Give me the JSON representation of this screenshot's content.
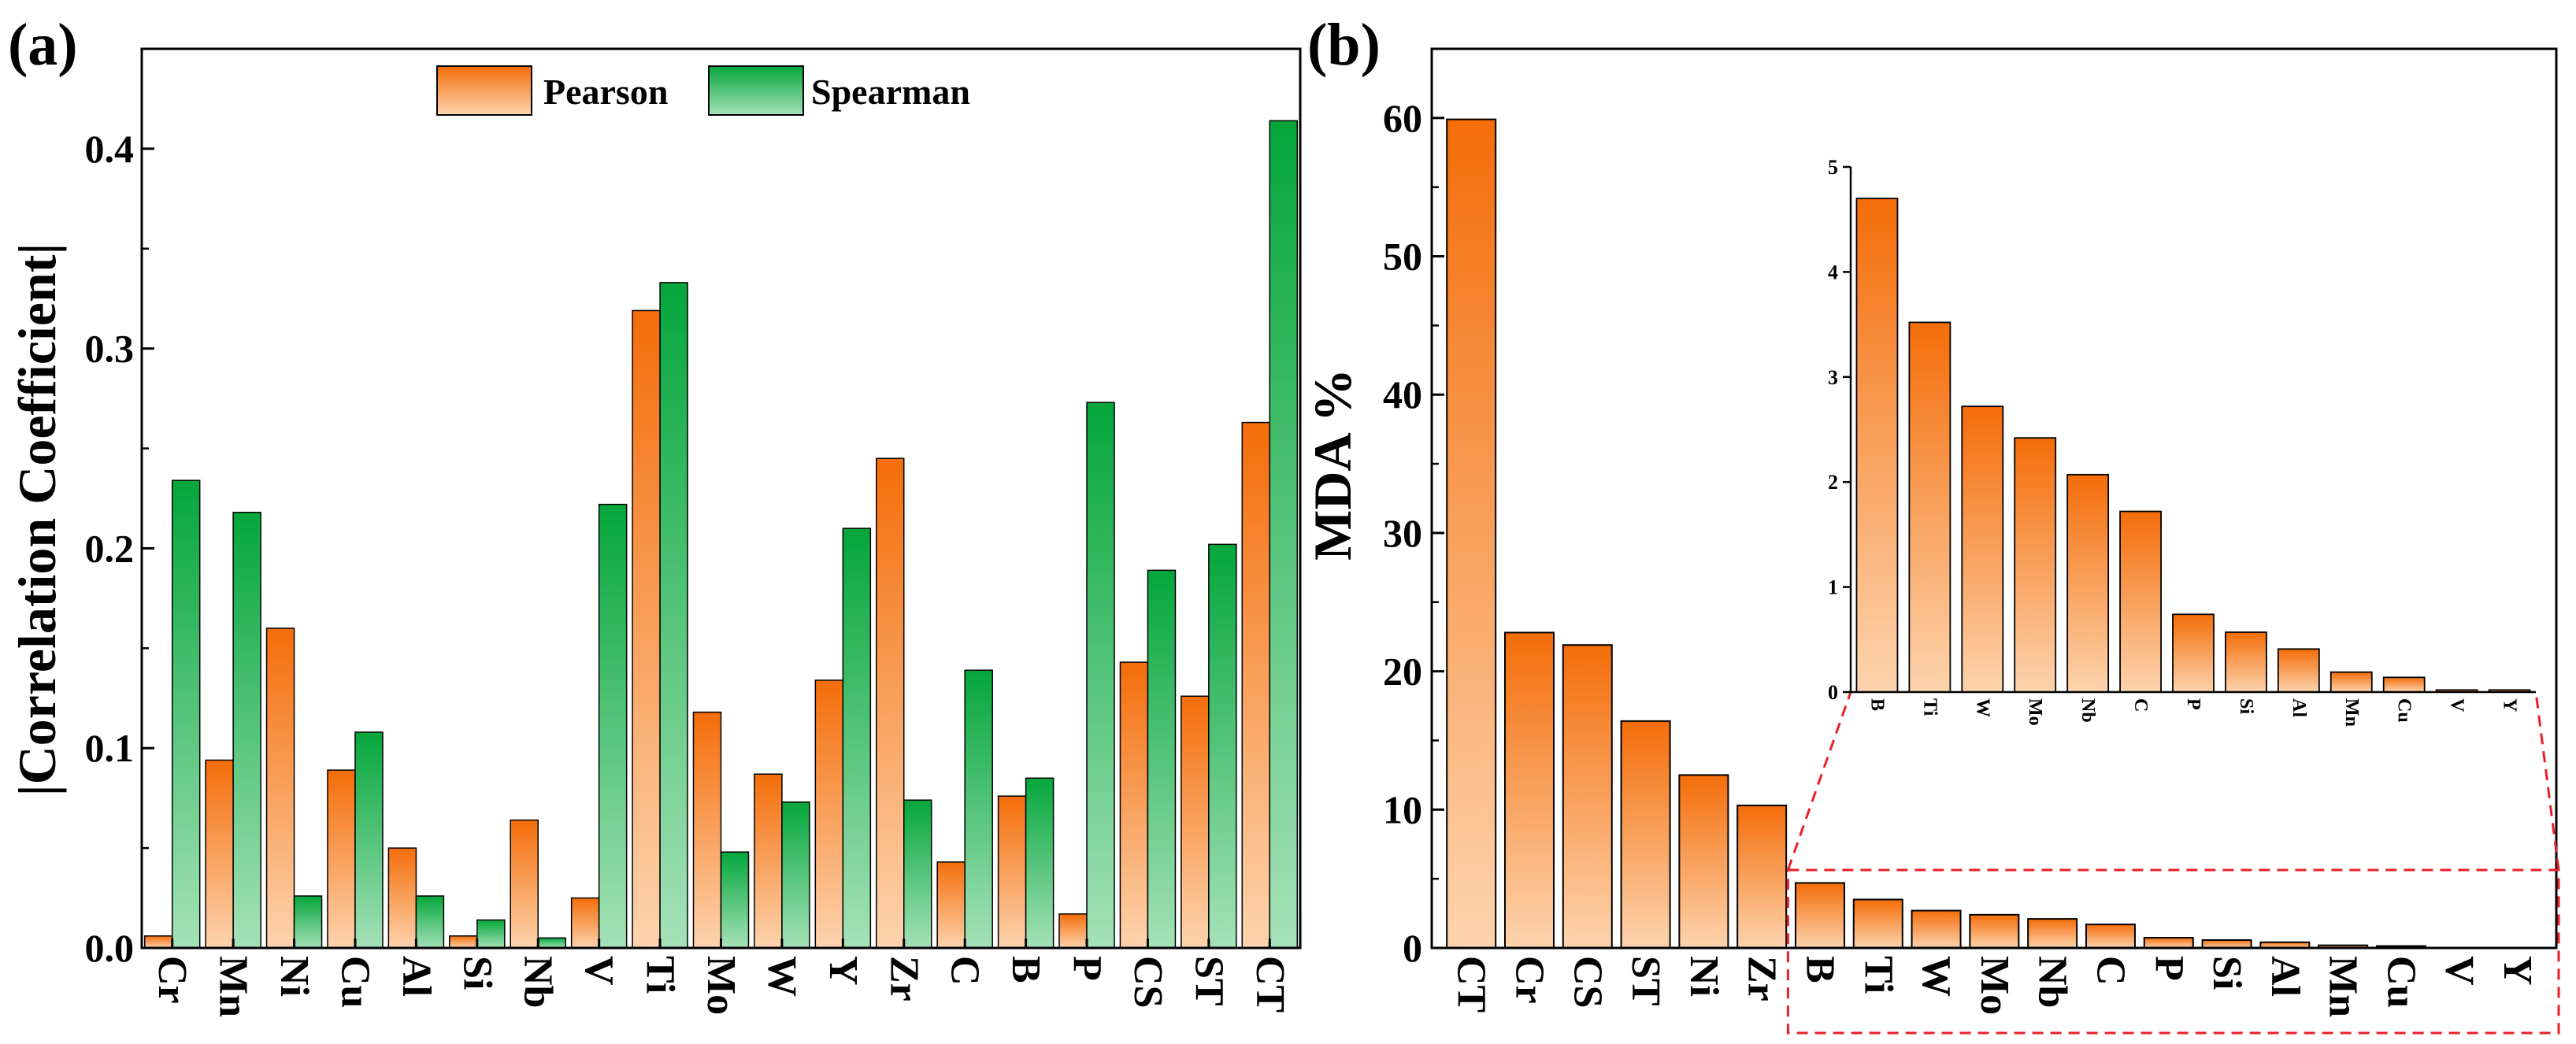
{
  "colors": {
    "pearson_top": "#f46d0a",
    "pearson_bottom": "#fdd4ae",
    "spearman_top": "#05a63c",
    "spearman_bottom": "#a5e2b8",
    "zoom_box": "#e8202a"
  },
  "chart_data": [
    {
      "panel": "(a)",
      "type": "bar",
      "ylabel": "|Correlation Coefficient|",
      "xlabel": "",
      "ylim": [
        0,
        0.45
      ],
      "yticks": [
        "0.0",
        "0.1",
        "0.2",
        "0.3",
        "0.4"
      ],
      "legend_position": "top-center",
      "categories": [
        "Cr",
        "Mn",
        "Ni",
        "Cu",
        "Al",
        "Si",
        "Nb",
        "V",
        "Ti",
        "Mo",
        "W",
        "Y",
        "Zr",
        "C",
        "B",
        "P",
        "CS",
        "ST",
        "CT"
      ],
      "series": [
        {
          "name": "Pearson",
          "values": [
            0.006,
            0.094,
            0.16,
            0.089,
            0.05,
            0.006,
            0.064,
            0.025,
            0.319,
            0.118,
            0.087,
            0.134,
            0.245,
            0.043,
            0.076,
            0.017,
            0.143,
            0.126,
            0.263
          ]
        },
        {
          "name": "Spearman",
          "values": [
            0.234,
            0.218,
            0.026,
            0.108,
            0.026,
            0.014,
            0.005,
            0.222,
            0.333,
            0.048,
            0.073,
            0.21,
            0.074,
            0.139,
            0.085,
            0.273,
            0.189,
            0.202,
            0.414
          ]
        }
      ]
    },
    {
      "panel": "(b)",
      "type": "bar",
      "ylabel": "MDA %",
      "xlabel": "",
      "ylim": [
        0,
        65
      ],
      "yticks": [
        "0",
        "10",
        "20",
        "30",
        "40",
        "50",
        "60"
      ],
      "categories": [
        "CT",
        "Cr",
        "CS",
        "ST",
        "Ni",
        "Zr",
        "B",
        "Ti",
        "W",
        "Mo",
        "Nb",
        "C",
        "P",
        "Si",
        "Al",
        "Mn",
        "Cu",
        "V",
        "Y"
      ],
      "values": [
        59.9,
        22.8,
        21.9,
        16.4,
        12.5,
        10.3,
        4.7,
        3.5,
        2.7,
        2.4,
        2.1,
        1.7,
        0.74,
        0.57,
        0.41,
        0.19,
        0.14,
        0.02,
        0.02
      ],
      "inset": {
        "type": "bar",
        "ylim": [
          0,
          5
        ],
        "yticks": [
          "0",
          "1",
          "2",
          "3",
          "4",
          "5"
        ],
        "categories": [
          "B",
          "Ti",
          "W",
          "Mo",
          "Nb",
          "C",
          "P",
          "Si",
          "Al",
          "Mn",
          "Cu",
          "V",
          "Y"
        ],
        "values": [
          4.7,
          3.52,
          2.72,
          2.42,
          2.07,
          1.72,
          0.74,
          0.57,
          0.41,
          0.19,
          0.14,
          0.02,
          0.02
        ]
      }
    }
  ]
}
